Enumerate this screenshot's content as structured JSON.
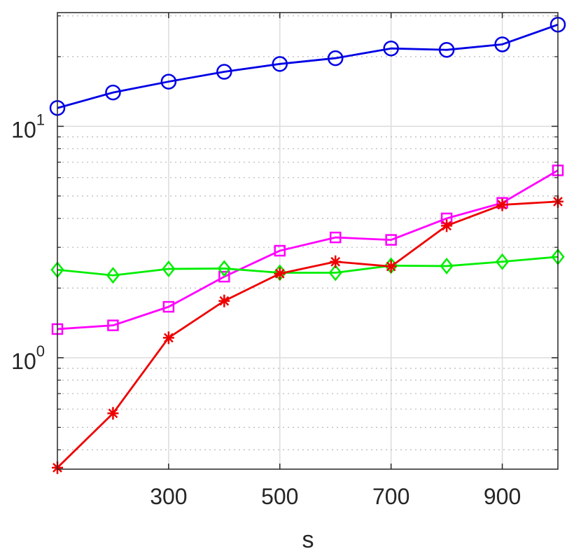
{
  "chart_data": {
    "type": "line",
    "xlabel": "s",
    "ylabel": "",
    "title": "",
    "x": [
      100,
      200,
      300,
      400,
      500,
      600,
      700,
      800,
      900,
      1000
    ],
    "xlim": [
      100,
      1000
    ],
    "ylim": [
      0.33,
      31
    ],
    "yscale": "log",
    "x_ticks": [
      300,
      500,
      700,
      900
    ],
    "x_tick_labels": [
      "300",
      "500",
      "700",
      "900"
    ],
    "y_ticks": [
      1,
      10
    ],
    "y_tick_labels": [
      {
        "base": "10",
        "exp": "0"
      },
      {
        "base": "10",
        "exp": "1"
      }
    ],
    "grid": true,
    "series": [
      {
        "color": "#0000e6",
        "marker": "circle",
        "values": [
          12.0,
          14.0,
          15.6,
          17.2,
          18.6,
          19.7,
          21.7,
          21.4,
          22.6,
          27.5
        ]
      },
      {
        "color": "#ff00ff",
        "marker": "square",
        "values": [
          1.33,
          1.38,
          1.66,
          2.24,
          2.9,
          3.31,
          3.23,
          4.0,
          4.67,
          6.45
        ]
      },
      {
        "color": "#00ee00",
        "marker": "diamond",
        "values": [
          2.4,
          2.27,
          2.42,
          2.43,
          2.33,
          2.33,
          2.5,
          2.49,
          2.6,
          2.73
        ]
      },
      {
        "color": "#ee0000",
        "marker": "asterisk",
        "values": [
          0.335,
          0.575,
          1.22,
          1.76,
          2.31,
          2.6,
          2.48,
          3.72,
          4.58,
          4.73
        ]
      }
    ]
  }
}
